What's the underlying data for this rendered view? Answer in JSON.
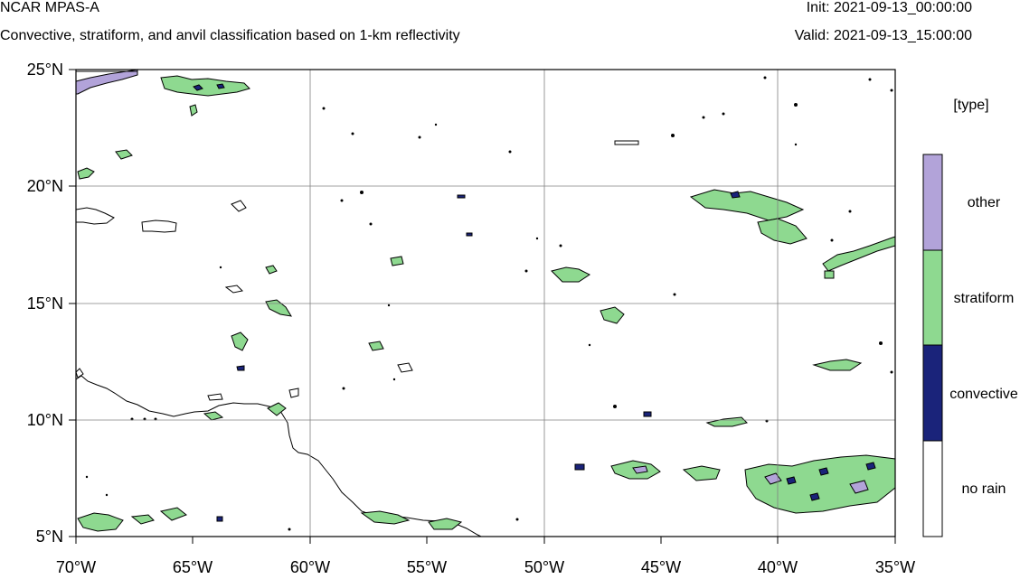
{
  "header": {
    "title": "NCAR MPAS-A",
    "subtitle": "Convective, stratiform, and anvil classification based on 1-km reflectivity",
    "init": "Init: 2021-09-13_00:00:00",
    "valid": "Valid: 2021-09-13_15:00:00"
  },
  "map": {
    "lat_range": [
      5,
      25
    ],
    "lon_range": [
      -70,
      -35
    ],
    "lat_ticks": [
      "25°N",
      "20°N",
      "15°N",
      "10°N",
      "5°N"
    ],
    "lon_ticks": [
      "70°W",
      "65°W",
      "60°W",
      "55°W",
      "50°W",
      "45°W",
      "40°W",
      "35°W"
    ],
    "grid": true
  },
  "legend": {
    "title": "[type]",
    "items": [
      {
        "label": "other",
        "color": "#b2a3d9"
      },
      {
        "label": "stratiform",
        "color": "#8ed990"
      },
      {
        "label": "convective",
        "color": "#1a237a"
      },
      {
        "label": "no rain",
        "color": "#ffffff"
      }
    ]
  }
}
